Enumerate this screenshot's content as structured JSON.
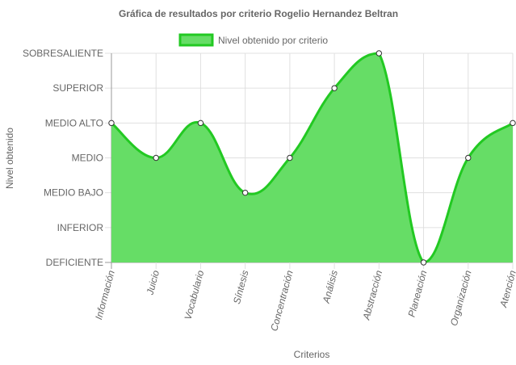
{
  "chart_data": {
    "type": "area",
    "title": "Gráfica de resultados por criterio Rogelio Hernandez Beltran",
    "xlabel": "Criterios",
    "ylabel": "Nivel obtenido",
    "levels": [
      "DEFICIENTE",
      "INFERIOR",
      "MEDIO BAJO",
      "MEDIO",
      "MEDIO ALTO",
      "SUPERIOR",
      "SOBRESALIENTE"
    ],
    "categories": [
      "Información",
      "Juicio",
      "Vocabulario",
      "Síntesis",
      "Concentración",
      "Análisis",
      "Abstracción",
      "Planeación",
      "Organización",
      "Atención"
    ],
    "series": [
      {
        "name": "Nivel obtenido por criterio",
        "values": [
          "MEDIO ALTO",
          "MEDIO",
          "MEDIO ALTO",
          "MEDIO BAJO",
          "MEDIO",
          "SUPERIOR",
          "SOBRESALIENTE",
          "DEFICIENTE",
          "MEDIO",
          "MEDIO ALTO"
        ]
      }
    ],
    "legend_position": "top",
    "grid": true,
    "colors": {
      "line": "#22c922",
      "fill": "#66dd66",
      "grid": "#e0e0e0",
      "axis": "#999999",
      "point_fill": "#ffffff",
      "point_stroke": "#333333"
    }
  }
}
